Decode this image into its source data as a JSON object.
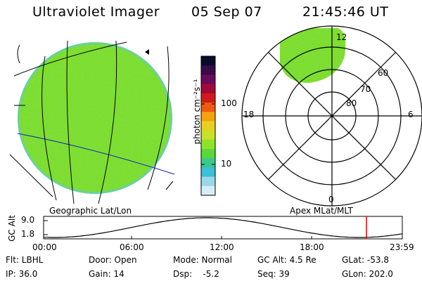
{
  "header": {
    "instrument": "Ultraviolet Imager",
    "date": "05 Sep 07",
    "time": "21:45:46 UT"
  },
  "globe_panel": {
    "label": "Geographic Lat/Lon",
    "fill_color": "#7ddd2c",
    "limb_color": "#5ec8e4"
  },
  "colorbar": {
    "unit_label": "photon cm⁻²s⁻¹",
    "ticks": [
      "100",
      "10"
    ],
    "colors": [
      "#0a0a2a",
      "#3a0a4a",
      "#6a0a5a",
      "#a00a3a",
      "#d01a1a",
      "#f05a10",
      "#f5a010",
      "#e8d020",
      "#c8e028",
      "#8ee22c",
      "#5ad83a",
      "#3ac890",
      "#3ac0d8",
      "#9ad8e8",
      "#d8eef4"
    ]
  },
  "polar_panel": {
    "label": "Apex MLat/MLT",
    "mlt_labels": {
      "top": "12",
      "left": "18",
      "right": "6",
      "bottom": "0"
    },
    "lat_labels": [
      "60",
      "70",
      "80"
    ]
  },
  "timeline": {
    "axis_title": "GC Alt",
    "y_labels": [
      "9.0",
      "1.8"
    ],
    "x_labels": [
      "00:00",
      "06:00",
      "12:00",
      "18:00",
      "23:59"
    ],
    "current_time_marker_color": "#e00000"
  },
  "info": {
    "filter": "Flt: LBHL",
    "ip": "IP: 36.0",
    "door": "Door: Open",
    "gain": "Gain: 14",
    "mode": "Mode: Normal",
    "dsp": "Dsp:    -5.2",
    "gc_alt": "GC Alt: 4.5 Re",
    "seq": "Seq: 39",
    "glat": "GLat: -53.8",
    "glon": "GLon: 202.0"
  }
}
